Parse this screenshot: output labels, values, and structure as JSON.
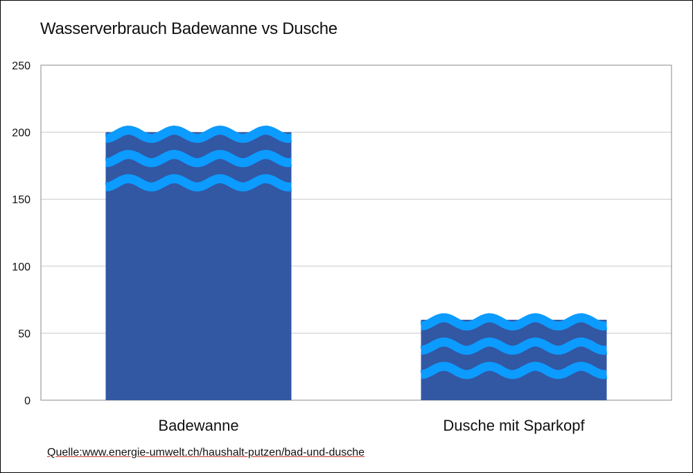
{
  "chart_data": {
    "type": "bar",
    "title": "Wasserverbrauch Badewanne vs Dusche",
    "categories": [
      "Badewanne",
      "Dusche mit Sparkopf"
    ],
    "values": [
      200,
      60
    ],
    "ylim": [
      0,
      250
    ],
    "yticks": [
      "0",
      "50",
      "100",
      "150",
      "200",
      "250"
    ],
    "xlabel": "",
    "ylabel": "",
    "grid": true,
    "colors": {
      "bar": "#3257a3",
      "wave": "#0c9bff",
      "grid": "#c8c8c8"
    }
  },
  "source": {
    "prefix": "Quelle:",
    "link": "www.energie-umwelt.ch/haushalt-putzen/bad-und-dusche"
  }
}
